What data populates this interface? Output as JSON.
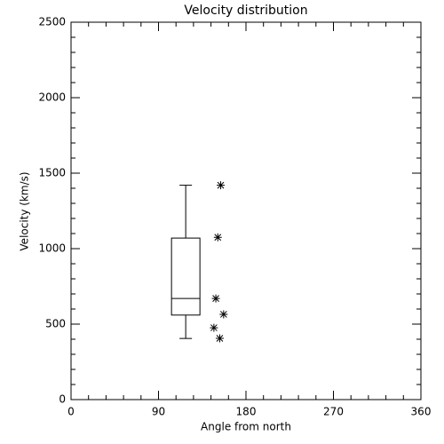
{
  "chart_data": {
    "type": "box",
    "title": "Velocity distribution",
    "xlabel": "Angle from north",
    "ylabel": "Velocity (km/s)",
    "xlim": [
      0,
      360
    ],
    "xticks": [
      0,
      90,
      180,
      270,
      360
    ],
    "ylim": [
      0,
      2500
    ],
    "yticks": [
      0,
      500,
      1000,
      1500,
      2000,
      2500
    ],
    "minor_intervals": 5,
    "color": "#000000",
    "box": {
      "x": 118,
      "whislo": 405,
      "q1": 560,
      "med": 670,
      "q3": 1070,
      "whishi": 1420
    },
    "points": {
      "x": [
        154,
        151,
        149,
        157,
        147,
        153
      ],
      "y": [
        1420,
        1075,
        670,
        565,
        476,
        406
      ]
    }
  }
}
